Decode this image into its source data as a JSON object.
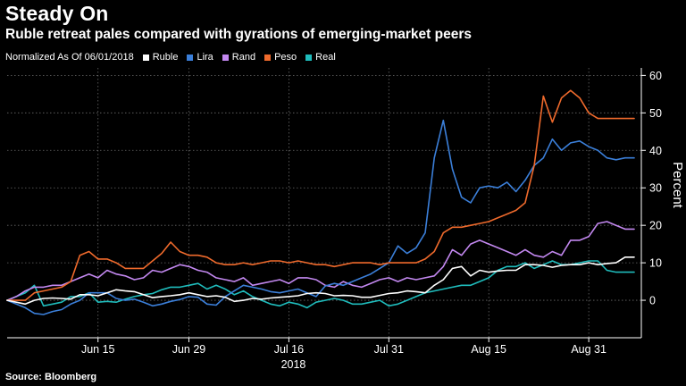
{
  "header": {
    "title": "Steady On",
    "subtitle": "Ruble retreat pales compared with gyrations of emerging-market peers"
  },
  "legend": {
    "note": "Normalized As Of 06/01/2018",
    "items": [
      {
        "label": "Ruble",
        "color": "#ffffff"
      },
      {
        "label": "Lira",
        "color": "#3b7fd9"
      },
      {
        "label": "Rand",
        "color": "#c388f0"
      },
      {
        "label": "Peso",
        "color": "#ef6a2c"
      },
      {
        "label": "Real",
        "color": "#1fbcbc"
      }
    ]
  },
  "footer": {
    "source": "Source: Bloomberg"
  },
  "chart_data": {
    "type": "line",
    "title": "Steady On",
    "subtitle": "Ruble retreat pales compared with gyrations of emerging-market peers",
    "ylabel": "Percent",
    "xlabel": "2018",
    "ylim": [
      -10,
      62
    ],
    "yticks": [
      0,
      10,
      20,
      30,
      40,
      50,
      60
    ],
    "xticks": [
      {
        "x": 10,
        "label": "Jun 15"
      },
      {
        "x": 20,
        "label": "Jun 29"
      },
      {
        "x": 31,
        "label": "Jul 16"
      },
      {
        "x": 42,
        "label": "Jul 31"
      },
      {
        "x": 53,
        "label": "Aug 15"
      },
      {
        "x": 64,
        "label": "Aug 31"
      }
    ],
    "x_caption": "2018",
    "grid": true,
    "legend_position": "top-left",
    "series": [
      {
        "name": "Ruble",
        "color": "#ffffff",
        "values": [
          0,
          -0.5,
          -1,
          0,
          0.5,
          0.6,
          0.5,
          0.3,
          1.5,
          1.5,
          1.2,
          2,
          2.8,
          2.5,
          2.3,
          1.5,
          0.7,
          1,
          1.2,
          1.5,
          2,
          1.5,
          1,
          1.2,
          0.8,
          -0.3,
          0,
          0.5,
          0.3,
          0.6,
          0.8,
          1,
          1.2,
          1.8,
          2,
          1.8,
          1.2,
          1.3,
          1.2,
          0.8,
          0.8,
          1.3,
          1.8,
          2,
          2.5,
          2.3,
          2,
          4,
          5.5,
          8.5,
          9,
          6.5,
          8,
          7.5,
          7.8,
          8,
          8,
          9.5,
          9.5,
          9.3,
          8.8,
          9.3,
          9.5,
          9.5,
          10,
          9.5,
          9.8,
          10,
          11.5,
          11.5
        ]
      },
      {
        "name": "Lira",
        "color": "#3b7fd9",
        "values": [
          0,
          -1,
          -2,
          -3.5,
          -3.8,
          -3,
          -2.5,
          -1,
          0,
          2,
          2,
          2,
          0.5,
          0,
          0.3,
          -0.5,
          -1.5,
          -1,
          -0.3,
          0.2,
          1,
          0.8,
          -1,
          -1.3,
          1,
          2.5,
          4,
          3.5,
          3,
          2.3,
          2,
          2.5,
          3,
          2,
          1,
          3.8,
          4.5,
          4,
          5,
          6,
          7,
          8.5,
          10,
          14.5,
          12.5,
          14,
          18,
          38,
          48,
          35,
          27.5,
          26,
          30,
          30.5,
          30,
          31.5,
          29,
          32,
          36,
          38,
          43,
          40,
          42,
          42.5,
          41,
          40,
          38,
          37.5,
          38,
          38
        ]
      },
      {
        "name": "Rand",
        "color": "#c388f0",
        "values": [
          0,
          1,
          2.5,
          3.5,
          3.5,
          4,
          4,
          5,
          6,
          7,
          6,
          8,
          7,
          6.5,
          5.5,
          6,
          8,
          7.5,
          8.5,
          9.5,
          9,
          8,
          7.5,
          6,
          5.5,
          5,
          6,
          4,
          4.5,
          5,
          5.5,
          4.5,
          6,
          6,
          5.5,
          4,
          3.5,
          5,
          4,
          3.5,
          4.5,
          5.5,
          6,
          5,
          6,
          5.5,
          6,
          6.5,
          9,
          13.5,
          12,
          15,
          16,
          15,
          14,
          13,
          12,
          13.5,
          12,
          11.5,
          13,
          12,
          16,
          16,
          17,
          20.5,
          21,
          20,
          19,
          19
        ]
      },
      {
        "name": "Peso",
        "color": "#ef6a2c",
        "values": [
          0,
          0,
          0,
          2,
          2.5,
          3,
          3.5,
          5,
          12,
          13,
          11,
          11,
          10,
          8.5,
          8.5,
          8.5,
          10.5,
          12.5,
          15.5,
          13,
          12,
          12,
          11.5,
          10,
          9.5,
          9.5,
          10,
          9.5,
          10,
          10.5,
          10.5,
          10,
          10.5,
          10,
          9.5,
          9.5,
          9,
          9.5,
          10,
          10,
          10,
          9.5,
          10,
          10,
          10,
          10,
          11,
          13,
          18,
          19.5,
          19.5,
          20,
          20.5,
          21,
          22,
          23,
          24,
          26,
          36,
          54.5,
          47.5,
          54,
          56,
          54,
          50,
          48.5,
          48.5,
          48.5,
          48.5,
          48.5
        ]
      },
      {
        "name": "Real",
        "color": "#1fbcbc",
        "values": [
          0,
          1,
          2,
          4,
          -1.5,
          -1,
          -0.5,
          1,
          1,
          2,
          -0.5,
          -0.3,
          -0.5,
          0.3,
          1,
          1.5,
          1.8,
          2.8,
          3.5,
          3.5,
          4,
          4.5,
          3,
          4,
          3,
          1.5,
          2.5,
          1,
          0,
          -1,
          -1.5,
          -0.5,
          -1,
          -2,
          -0.5,
          0,
          0.5,
          0,
          -1,
          -1,
          -0.5,
          0,
          -1.5,
          -1,
          0,
          1,
          2,
          2.5,
          3,
          3.5,
          4,
          4,
          5,
          6,
          8,
          9,
          9,
          10,
          8.5,
          9.5,
          10.5,
          9.5,
          9.5,
          10,
          10.5,
          10.5,
          8,
          7.5,
          7.5,
          7.5
        ]
      }
    ]
  }
}
